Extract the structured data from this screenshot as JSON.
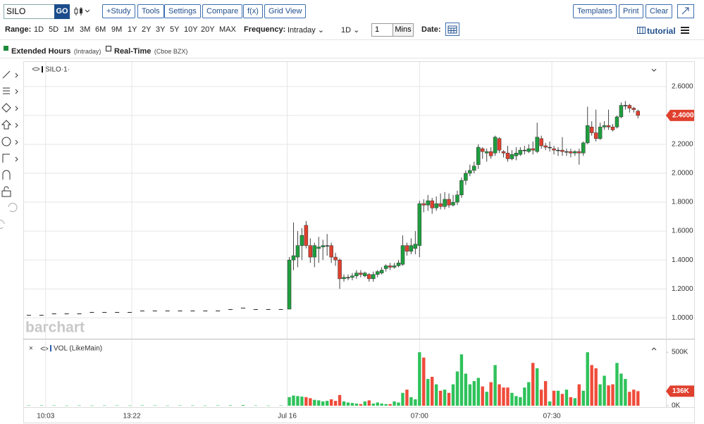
{
  "toolbar": {
    "symbol": "SILO",
    "go": "GO",
    "buttons": [
      "+Study",
      "Tools",
      "Settings",
      "Compare",
      "f(x)",
      "Grid View"
    ],
    "right_buttons": [
      "Templates",
      "Print",
      "Clear"
    ]
  },
  "range_bar": {
    "range_label": "Range:",
    "ranges": [
      "1D",
      "5D",
      "1M",
      "3M",
      "6M",
      "9M",
      "1Y",
      "2Y",
      "3Y",
      "5Y",
      "10Y",
      "20Y",
      "MAX"
    ],
    "frequency_label": "Frequency:",
    "frequency": "Intraday",
    "period": "1D",
    "interval": "1",
    "interval_unit": "Mins",
    "date_label": "Date:",
    "tutorial": "tutorial"
  },
  "legend": {
    "extended_hours": "Extended Hours",
    "extended_hours_note": "(Intraday)",
    "real_time": "Real-Time",
    "real_time_note": "(Cboe BZX)"
  },
  "watermark": "barchart",
  "chart_data": [
    {
      "type": "candlestick",
      "title": "SILO·1·",
      "up_color": "#1e9e3e",
      "down_color": "#e0402e",
      "flat_color": "#222222",
      "x": [
        0,
        3,
        6,
        9,
        12,
        15,
        18,
        21,
        24,
        27,
        30,
        33,
        36,
        39,
        42,
        45,
        48,
        51,
        54,
        57,
        60,
        62,
        63,
        64,
        65,
        66,
        67,
        68,
        69,
        70,
        71,
        72,
        73,
        74,
        75,
        76,
        77,
        78,
        79,
        80,
        81,
        82,
        83,
        84,
        85,
        86,
        87,
        88,
        89,
        90,
        91,
        92,
        93,
        94,
        95,
        96,
        97,
        98,
        99,
        100,
        101,
        102,
        103,
        104,
        105,
        106,
        107,
        108,
        109,
        110,
        111,
        112,
        113,
        114,
        115,
        116,
        117,
        118,
        119,
        120,
        121,
        122,
        123,
        124,
        125,
        126,
        127,
        128,
        129,
        130,
        131,
        132,
        133,
        134,
        135,
        136,
        137,
        138,
        139,
        140,
        141,
        142,
        143,
        144,
        145
      ],
      "open": [
        1.02,
        1.02,
        1.03,
        1.03,
        1.03,
        1.04,
        1.04,
        1.04,
        1.04,
        1.05,
        1.05,
        1.05,
        1.05,
        1.05,
        1.05,
        1.05,
        1.06,
        1.07,
        1.06,
        1.06,
        1.06,
        1.06,
        1.4,
        1.42,
        1.5,
        1.64,
        1.5,
        1.42,
        1.48,
        1.49,
        1.5,
        1.5,
        1.42,
        1.4,
        1.27,
        1.28,
        1.28,
        1.29,
        1.31,
        1.29,
        1.3,
        1.27,
        1.3,
        1.31,
        1.34,
        1.36,
        1.35,
        1.36,
        1.37,
        1.5,
        1.46,
        1.48,
        1.5,
        1.79,
        1.78,
        1.81,
        1.76,
        1.79,
        1.77,
        1.82,
        1.78,
        1.8,
        1.85,
        1.95,
        2.0,
        2.02,
        2.06,
        2.17,
        2.14,
        2.15,
        2.14,
        2.24,
        2.15,
        2.14,
        2.1,
        2.12,
        2.13,
        2.16,
        2.15,
        2.17,
        2.15,
        2.24,
        2.19,
        2.18,
        2.17,
        2.16,
        2.16,
        2.15,
        2.15,
        2.14,
        2.15,
        2.14,
        2.21,
        2.32,
        2.28,
        2.24,
        2.32,
        2.33,
        2.32,
        2.32,
        2.39,
        2.47,
        2.47,
        2.45,
        2.43
      ],
      "high": [
        1.02,
        1.02,
        1.03,
        1.03,
        1.03,
        1.04,
        1.04,
        1.04,
        1.04,
        1.05,
        1.05,
        1.05,
        1.05,
        1.05,
        1.05,
        1.05,
        1.06,
        1.07,
        1.06,
        1.06,
        1.06,
        1.42,
        1.66,
        1.6,
        1.62,
        1.67,
        1.55,
        1.52,
        1.56,
        1.54,
        1.58,
        1.52,
        1.45,
        1.41,
        1.3,
        1.3,
        1.31,
        1.33,
        1.33,
        1.32,
        1.31,
        1.32,
        1.33,
        1.35,
        1.37,
        1.38,
        1.38,
        1.4,
        1.57,
        1.52,
        1.55,
        1.6,
        1.81,
        1.82,
        1.85,
        1.83,
        1.84,
        1.86,
        1.87,
        1.86,
        1.85,
        1.88,
        1.97,
        2.02,
        2.06,
        2.08,
        2.2,
        2.18,
        2.17,
        2.18,
        2.26,
        2.25,
        2.16,
        2.19,
        2.16,
        2.18,
        2.18,
        2.19,
        2.2,
        2.22,
        2.35,
        2.26,
        2.21,
        2.22,
        2.19,
        2.18,
        2.25,
        2.17,
        2.17,
        2.16,
        2.17,
        2.22,
        2.46,
        2.36,
        2.44,
        2.35,
        2.36,
        2.44,
        2.34,
        2.4,
        2.49,
        2.5,
        2.48,
        2.46,
        2.44
      ],
      "low": [
        1.02,
        1.02,
        1.03,
        1.03,
        1.03,
        1.04,
        1.04,
        1.04,
        1.04,
        1.05,
        1.05,
        1.05,
        1.05,
        1.05,
        1.05,
        1.05,
        1.06,
        1.07,
        1.06,
        1.06,
        1.06,
        1.06,
        1.33,
        1.35,
        1.4,
        1.48,
        1.38,
        1.35,
        1.38,
        1.4,
        1.43,
        1.38,
        1.36,
        1.2,
        1.25,
        1.26,
        1.26,
        1.27,
        1.28,
        1.28,
        1.25,
        1.25,
        1.28,
        1.3,
        1.32,
        1.33,
        1.34,
        1.35,
        1.36,
        1.43,
        1.44,
        1.44,
        1.42,
        1.73,
        1.74,
        1.72,
        1.74,
        1.75,
        1.75,
        1.76,
        1.77,
        1.78,
        1.83,
        1.92,
        1.98,
        2.0,
        2.03,
        2.1,
        2.08,
        2.1,
        2.12,
        2.14,
        2.11,
        2.08,
        2.09,
        2.09,
        2.12,
        2.13,
        2.14,
        2.13,
        2.14,
        2.17,
        2.16,
        2.15,
        2.13,
        2.12,
        2.12,
        2.12,
        2.11,
        2.12,
        2.06,
        2.12,
        2.2,
        2.26,
        2.22,
        2.23,
        2.3,
        2.3,
        2.29,
        2.31,
        2.38,
        2.44,
        2.42,
        2.42,
        2.38
      ],
      "close": [
        1.02,
        1.02,
        1.03,
        1.03,
        1.03,
        1.04,
        1.04,
        1.04,
        1.04,
        1.05,
        1.05,
        1.05,
        1.05,
        1.05,
        1.05,
        1.05,
        1.06,
        1.07,
        1.06,
        1.06,
        1.06,
        1.4,
        1.43,
        1.5,
        1.57,
        1.5,
        1.42,
        1.5,
        1.49,
        1.5,
        1.5,
        1.42,
        1.4,
        1.27,
        1.28,
        1.28,
        1.29,
        1.31,
        1.3,
        1.31,
        1.27,
        1.3,
        1.32,
        1.33,
        1.36,
        1.35,
        1.36,
        1.38,
        1.5,
        1.46,
        1.5,
        1.51,
        1.79,
        1.78,
        1.81,
        1.76,
        1.79,
        1.77,
        1.82,
        1.78,
        1.8,
        1.85,
        1.95,
        2.0,
        2.02,
        2.05,
        2.18,
        2.15,
        2.15,
        2.12,
        2.25,
        2.16,
        2.14,
        2.1,
        2.13,
        2.14,
        2.16,
        2.16,
        2.17,
        2.16,
        2.25,
        2.19,
        2.18,
        2.18,
        2.16,
        2.16,
        2.15,
        2.15,
        2.14,
        2.15,
        2.14,
        2.21,
        2.33,
        2.28,
        2.24,
        2.32,
        2.33,
        2.32,
        2.3,
        2.39,
        2.47,
        2.47,
        2.45,
        2.44,
        2.4
      ],
      "xlim": [
        -1,
        152
      ],
      "ylim": [
        0.86,
        2.76
      ],
      "xticks": [
        {
          "value": 4,
          "label": "10:03"
        },
        {
          "value": 24.5,
          "label": "13:22"
        },
        {
          "value": 61.5,
          "label": "Jul 16"
        },
        {
          "value": 93,
          "label": "07:00"
        },
        {
          "value": 124.5,
          "label": "07:30"
        }
      ],
      "yticks": [
        {
          "value": 1.0,
          "label": "1.0000"
        },
        {
          "value": 1.2,
          "label": "1.2000"
        },
        {
          "value": 1.4,
          "label": "1.4000"
        },
        {
          "value": 1.6,
          "label": "1.6000"
        },
        {
          "value": 1.8,
          "label": "1.8000"
        },
        {
          "value": 2.0,
          "label": "2.0000"
        },
        {
          "value": 2.2,
          "label": "2.2000"
        },
        {
          "value": 2.4,
          "label": "2.4000"
        },
        {
          "value": 2.6,
          "label": "2.6000"
        }
      ],
      "last_value": {
        "value": 2.4,
        "label": "2.4000"
      },
      "grid": true
    },
    {
      "type": "bar",
      "title": "VOL (LikeMain)",
      "up_color": "#2fc25b",
      "down_color": "#ef4b3a",
      "values": [
        3000,
        3000,
        3000,
        2000,
        3000,
        2000,
        3000,
        3000,
        2000,
        3000,
        3000,
        2000,
        3000,
        3000,
        2000,
        3000,
        4000,
        6000,
        3000,
        2000,
        3000,
        80000,
        95000,
        90000,
        85000,
        80000,
        70000,
        55000,
        50000,
        40000,
        45000,
        60000,
        45000,
        100000,
        40000,
        30000,
        25000,
        20000,
        15000,
        40000,
        50000,
        20000,
        30000,
        20000,
        15000,
        15000,
        40000,
        30000,
        120000,
        150000,
        80000,
        60000,
        500000,
        450000,
        250000,
        270000,
        200000,
        140000,
        150000,
        120000,
        200000,
        320000,
        480000,
        300000,
        200000,
        230000,
        260000,
        180000,
        130000,
        220000,
        380000,
        200000,
        170000,
        170000,
        120000,
        90000,
        80000,
        170000,
        220000,
        400000,
        350000,
        150000,
        230000,
        40000,
        140000,
        140000,
        110000,
        150000,
        80000,
        70000,
        200000,
        140000,
        500000,
        380000,
        350000,
        200000,
        280000,
        190000,
        200000,
        400000,
        300000,
        250000,
        130000,
        150000,
        136000
      ],
      "ylim": [
        0,
        560000
      ],
      "yticks": [
        {
          "value": 0,
          "label": "0K"
        },
        {
          "value": 500000,
          "label": "500K"
        }
      ],
      "last_value": {
        "value": 136000,
        "label": "136K"
      }
    }
  ]
}
